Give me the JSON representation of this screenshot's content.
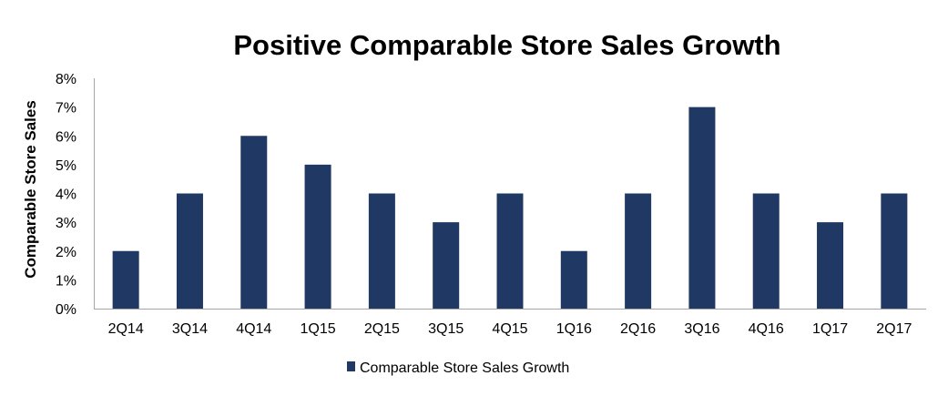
{
  "chart_data": {
    "type": "bar",
    "title": "Positive Comparable Store Sales Growth",
    "xlabel": "",
    "ylabel": "Comparable Store Sales",
    "categories": [
      "2Q14",
      "3Q14",
      "4Q14",
      "1Q15",
      "2Q15",
      "3Q15",
      "4Q15",
      "1Q16",
      "2Q16",
      "3Q16",
      "4Q16",
      "1Q17",
      "2Q17"
    ],
    "series": [
      {
        "name": "Comparable Store Sales Growth",
        "values": [
          2,
          4,
          6,
          5,
          4,
          3,
          4,
          2,
          4,
          7,
          4,
          3,
          4
        ],
        "color": "#1f3864"
      }
    ],
    "ylim": [
      0,
      8
    ],
    "yticks": [
      0,
      1,
      2,
      3,
      4,
      5,
      6,
      7,
      8
    ],
    "ytick_labels": [
      "0%",
      "1%",
      "2%",
      "3%",
      "4%",
      "5%",
      "6%",
      "7%",
      "8%"
    ],
    "grid": false,
    "legend_position": "bottom-center"
  }
}
